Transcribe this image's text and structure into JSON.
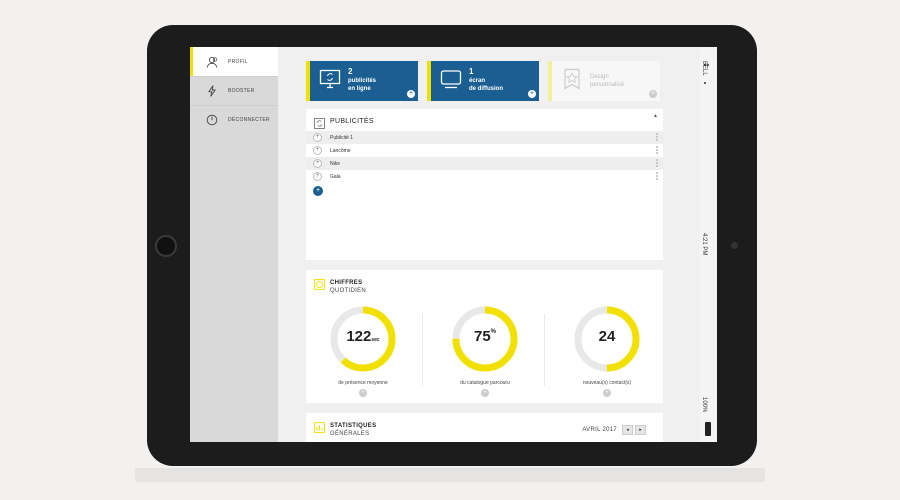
{
  "sidebar": {
    "items": [
      {
        "label": "PROFIL",
        "icon": "user-icon",
        "active": true
      },
      {
        "label": "BOOSTER",
        "icon": "lightning-icon"
      },
      {
        "label": "DÉCONNECTER",
        "icon": "power-icon"
      }
    ]
  },
  "cards": [
    {
      "number": "2",
      "line1": "publicités",
      "line2": "en ligne",
      "icon": "refresh-monitor-icon",
      "action": "+"
    },
    {
      "number": "1",
      "line1": "écran",
      "line2": "de diffusion",
      "icon": "screen-icon",
      "action": "+"
    },
    {
      "line1": "Design",
      "line2": "personnalisé",
      "icon": "star-ribbon-icon",
      "action": "+"
    }
  ],
  "publicites": {
    "title": "PUBLICITÉS",
    "rows": [
      {
        "name": "Publicité 1",
        "action": "+"
      },
      {
        "name": "Lancôme",
        "action": "+"
      },
      {
        "name": "Nike",
        "action": "+"
      },
      {
        "name": "Gala",
        "action": "+"
      }
    ],
    "add_label": "+",
    "scroll_up": "▲"
  },
  "chiffres": {
    "title": "CHIFFRES",
    "subtitle": "QUOTIDIEN",
    "stats": [
      {
        "value": "122",
        "unit": "sec",
        "label": "de présence moyenne",
        "info": "+",
        "fill": 0.62
      },
      {
        "value": "75",
        "unit": "%",
        "label": "du catalogue parcouru",
        "info": "+",
        "fill": 0.75
      },
      {
        "value": "24",
        "unit": "",
        "label": "nouveau(x) contact(s)",
        "info": "+",
        "fill": 0.5
      }
    ]
  },
  "statistiques": {
    "title": "STATISTIQUES",
    "subtitle": "GÉNÉRALES",
    "month": "AVRIL 2017",
    "prev": "◂",
    "next": "▸"
  },
  "status_bar": {
    "carrier": "BELL",
    "time": "4:21 PM",
    "battery": "100%"
  },
  "colors": {
    "accent": "#f2e100",
    "primary": "#1b5f92",
    "ring_track": "#e8e8e8"
  }
}
